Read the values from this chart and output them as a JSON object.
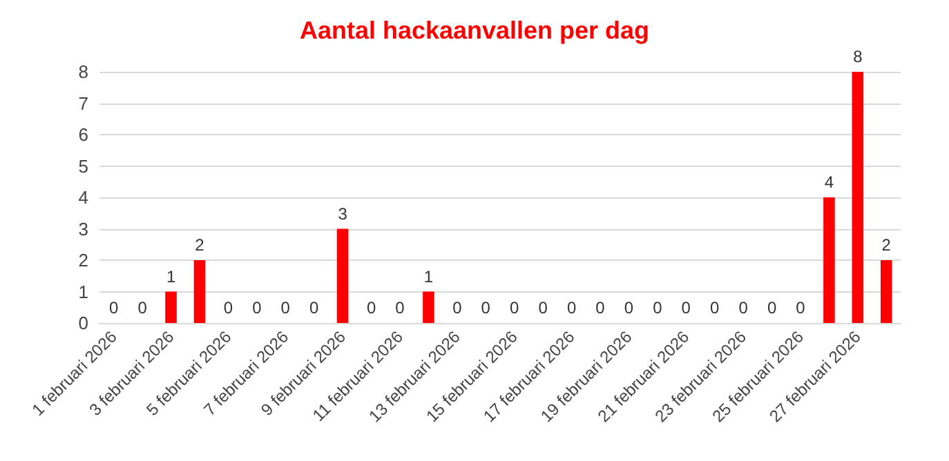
{
  "chart_data": {
    "type": "bar",
    "title": "Aantal hackaanvallen per dag",
    "categories": [
      "1 februari 2026",
      null,
      "3 februari 2026",
      null,
      "5 februari 2026",
      null,
      "7 februari 2026",
      null,
      "9 februari 2026",
      null,
      "11 februari 2026",
      null,
      "13 februari 2026",
      null,
      "15 februari 2026",
      null,
      "17 februari 2026",
      null,
      "19 februari 2026",
      null,
      "21 februari 2026",
      null,
      "23 februari 2026",
      null,
      "25 februari 2026",
      null,
      "27 februari 2026",
      null
    ],
    "values": [
      0,
      0,
      1,
      2,
      0,
      0,
      0,
      0,
      3,
      0,
      0,
      1,
      0,
      0,
      0,
      0,
      0,
      0,
      0,
      0,
      0,
      0,
      0,
      0,
      0,
      4,
      8,
      2
    ],
    "color": "#ff0000",
    "ylim": [
      0,
      8
    ],
    "yticks": [
      0,
      1,
      2,
      3,
      4,
      5,
      6,
      7,
      8
    ],
    "grid": "y",
    "data_labels": true
  }
}
